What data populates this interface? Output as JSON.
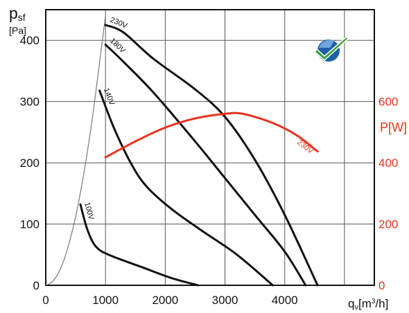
{
  "chart_data": {
    "type": "line",
    "x_axis": {
      "label_main": "q",
      "label_sub": "v",
      "label_unit_pre": "[m",
      "label_unit_sup": "3",
      "label_unit_post": "/h]",
      "range": [
        0,
        5500
      ],
      "ticks": [
        "0",
        "1000",
        "2000",
        "3000",
        "4000"
      ]
    },
    "y_axis_left": {
      "label_main": "p",
      "label_sub": "sf",
      "label_unit": "[Pa]",
      "range": [
        0,
        450
      ],
      "ticks": [
        "0",
        "100",
        "200",
        "300",
        "400"
      ]
    },
    "y_axis_right": {
      "label": "P[W]",
      "ticks": [
        "0",
        "200",
        "400",
        "600"
      ],
      "color": "#e8321e"
    },
    "grid": true,
    "series": [
      {
        "name": "230V",
        "color": "#111111",
        "axis": "left",
        "points": [
          [
            1000,
            425
          ],
          [
            1300,
            413
          ],
          [
            1800,
            370
          ],
          [
            2500,
            320
          ],
          [
            3000,
            275
          ],
          [
            3500,
            205
          ],
          [
            4000,
            115
          ],
          [
            4550,
            0
          ]
        ]
      },
      {
        "name": "180V",
        "color": "#111111",
        "axis": "left",
        "points": [
          [
            1000,
            393
          ],
          [
            1300,
            365
          ],
          [
            1800,
            315
          ],
          [
            2500,
            235
          ],
          [
            3000,
            175
          ],
          [
            3500,
            115
          ],
          [
            4000,
            55
          ],
          [
            4350,
            0
          ]
        ]
      },
      {
        "name": "140V",
        "color": "#111111",
        "axis": "left",
        "points": [
          [
            900,
            318
          ],
          [
            1150,
            255
          ],
          [
            1450,
            195
          ],
          [
            1700,
            160
          ],
          [
            2100,
            125
          ],
          [
            2600,
            90
          ],
          [
            3200,
            50
          ],
          [
            3800,
            0
          ]
        ]
      },
      {
        "name": "100V",
        "color": "#111111",
        "axis": "left",
        "points": [
          [
            580,
            132
          ],
          [
            700,
            90
          ],
          [
            850,
            62
          ],
          [
            1100,
            48
          ],
          [
            1600,
            30
          ],
          [
            2100,
            12
          ],
          [
            2550,
            0
          ]
        ]
      },
      {
        "name": "230V",
        "color": "#e8321e",
        "axis": "right",
        "points": [
          [
            1000,
            418
          ],
          [
            1500,
            470
          ],
          [
            2000,
            515
          ],
          [
            2500,
            545
          ],
          [
            3000,
            560
          ],
          [
            3300,
            560
          ],
          [
            3800,
            530
          ],
          [
            4200,
            490
          ],
          [
            4550,
            437
          ]
        ]
      }
    ],
    "system_curve": {
      "color": "#777777",
      "points": [
        [
          0,
          0
        ],
        [
          100,
          5
        ],
        [
          200,
          18
        ],
        [
          300,
          40
        ],
        [
          400,
          72
        ],
        [
          500,
          112
        ],
        [
          600,
          162
        ],
        [
          700,
          220
        ],
        [
          800,
          287
        ],
        [
          900,
          363
        ],
        [
          1000,
          440
        ]
      ]
    }
  }
}
